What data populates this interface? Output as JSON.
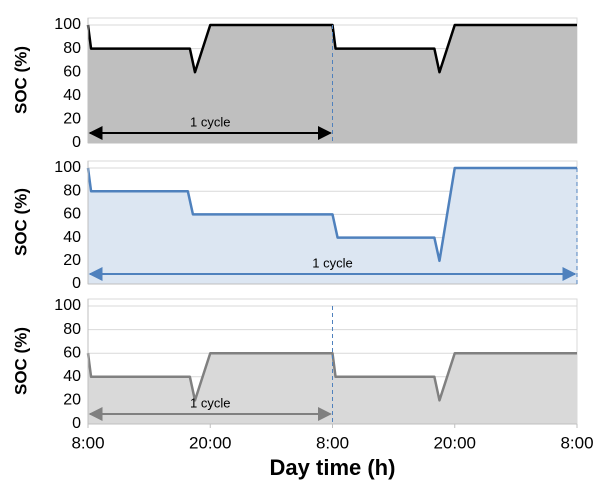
{
  "chart_data": [
    {
      "type": "area",
      "ylabel": "SOC (%)",
      "color": "#000000",
      "fill_color": "#bfbfbf",
      "x": [
        0,
        0.3,
        10,
        10.5,
        12,
        24,
        24.3,
        34,
        34.5,
        36,
        48
      ],
      "values": [
        100,
        80,
        80,
        60,
        100,
        100,
        80,
        80,
        60,
        100,
        100
      ],
      "xlim": [
        0,
        48
      ],
      "ylim": [
        0,
        100
      ],
      "yticks": [
        0,
        20,
        40,
        60,
        80,
        100
      ],
      "grid": true,
      "annotation": {
        "text": "1 cycle",
        "from": 0,
        "to": 24
      }
    },
    {
      "type": "area",
      "ylabel": "SOC (%)",
      "color": "#4f81bd",
      "fill_color": "#dce6f2",
      "x": [
        0,
        0.3,
        9.8,
        10.3,
        24,
        24.5,
        34,
        34.5,
        36,
        48
      ],
      "values": [
        100,
        80,
        80,
        60,
        60,
        40,
        40,
        20,
        100,
        100
      ],
      "xlim": [
        0,
        48
      ],
      "ylim": [
        0,
        100
      ],
      "yticks": [
        0,
        20,
        40,
        60,
        80,
        100
      ],
      "grid": true,
      "annotation": {
        "text": "1 cycle",
        "from": 0,
        "to": 48
      }
    },
    {
      "type": "area",
      "ylabel": "SOC (%)",
      "color": "#808080",
      "fill_color": "#d9d9d9",
      "x": [
        0,
        0.3,
        10,
        10.5,
        12,
        24,
        24.3,
        34,
        34.5,
        36,
        48
      ],
      "values": [
        60,
        40,
        40,
        20,
        60,
        60,
        40,
        40,
        20,
        60,
        60
      ],
      "xlim": [
        0,
        48
      ],
      "ylim": [
        0,
        100
      ],
      "yticks": [
        0,
        20,
        40,
        60,
        80,
        100
      ],
      "grid": true,
      "annotation": {
        "text": "1 cycle",
        "from": 0,
        "to": 24
      },
      "xlabel": "Day time (h)",
      "xticks": [
        {
          "value": 0,
          "label": "8:00"
        },
        {
          "value": 12,
          "label": "20:00"
        },
        {
          "value": 24,
          "label": "8:00"
        },
        {
          "value": 36,
          "label": "20:00"
        },
        {
          "value": 48,
          "label": "8:00"
        }
      ]
    }
  ]
}
